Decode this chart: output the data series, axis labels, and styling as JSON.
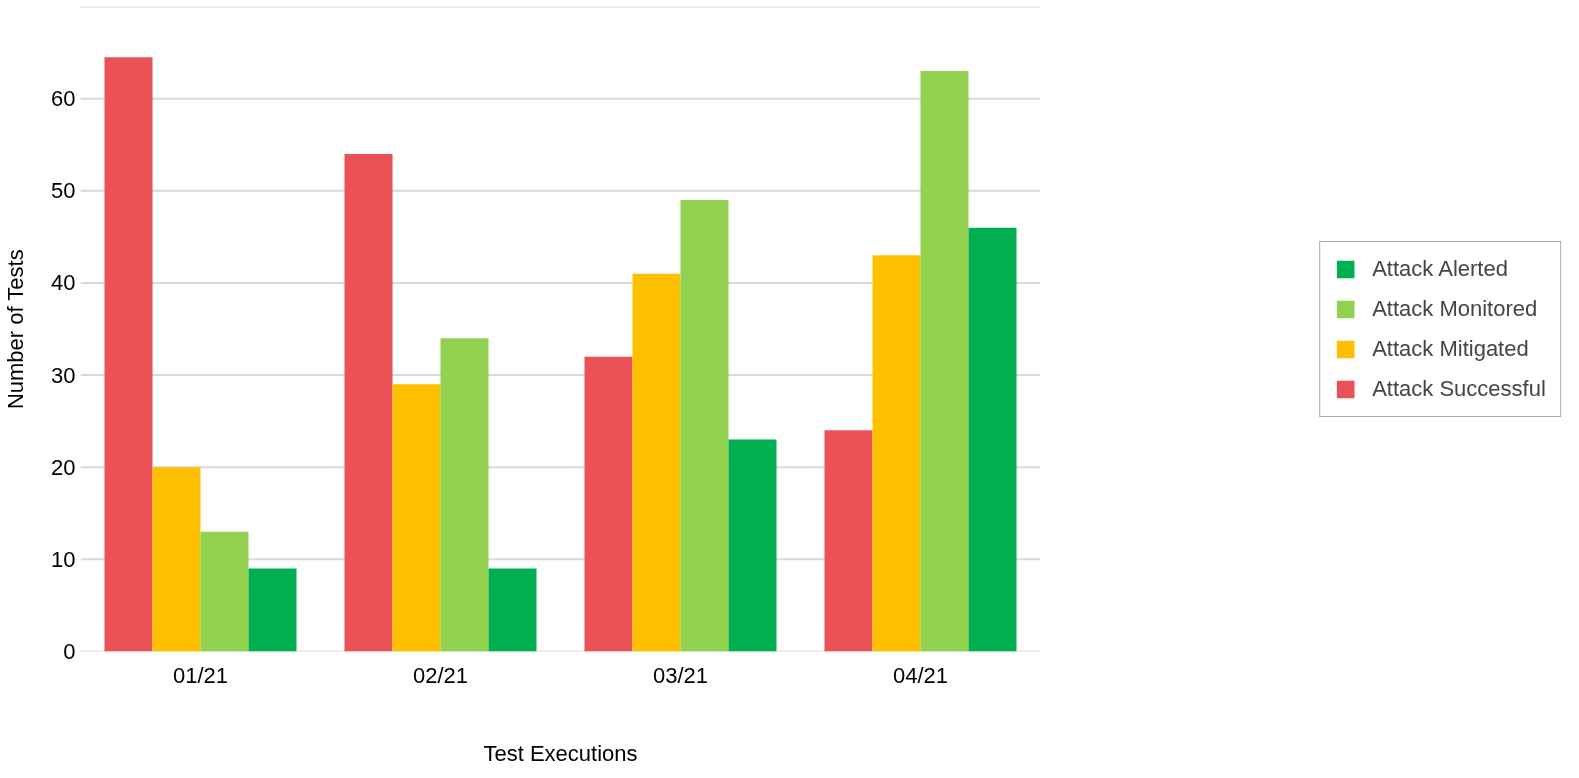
{
  "chart_data": {
    "type": "bar",
    "xlabel": "Test Executions",
    "ylabel": "Number of Tests",
    "categories": [
      "01/21",
      "02/21",
      "03/21",
      "04/21"
    ],
    "series": [
      {
        "name": "Attack Successful",
        "color": "#e95157",
        "values": [
          64.5,
          54,
          32,
          24
        ]
      },
      {
        "name": "Attack Mitigated",
        "color": "#ffc000",
        "values": [
          20,
          29,
          41,
          43
        ]
      },
      {
        "name": "Attack Monitored",
        "color": "#92d050",
        "values": [
          13,
          34,
          49,
          63
        ]
      },
      {
        "name": "Attack Alerted",
        "color": "#00b050",
        "values": [
          9,
          9,
          23,
          46
        ]
      }
    ],
    "ylim": [
      0,
      70
    ],
    "yticks": [
      0,
      10,
      20,
      30,
      40,
      50,
      60,
      {
        "value": 70,
        "label": null
      }
    ],
    "grid": "y",
    "legend": "right"
  }
}
